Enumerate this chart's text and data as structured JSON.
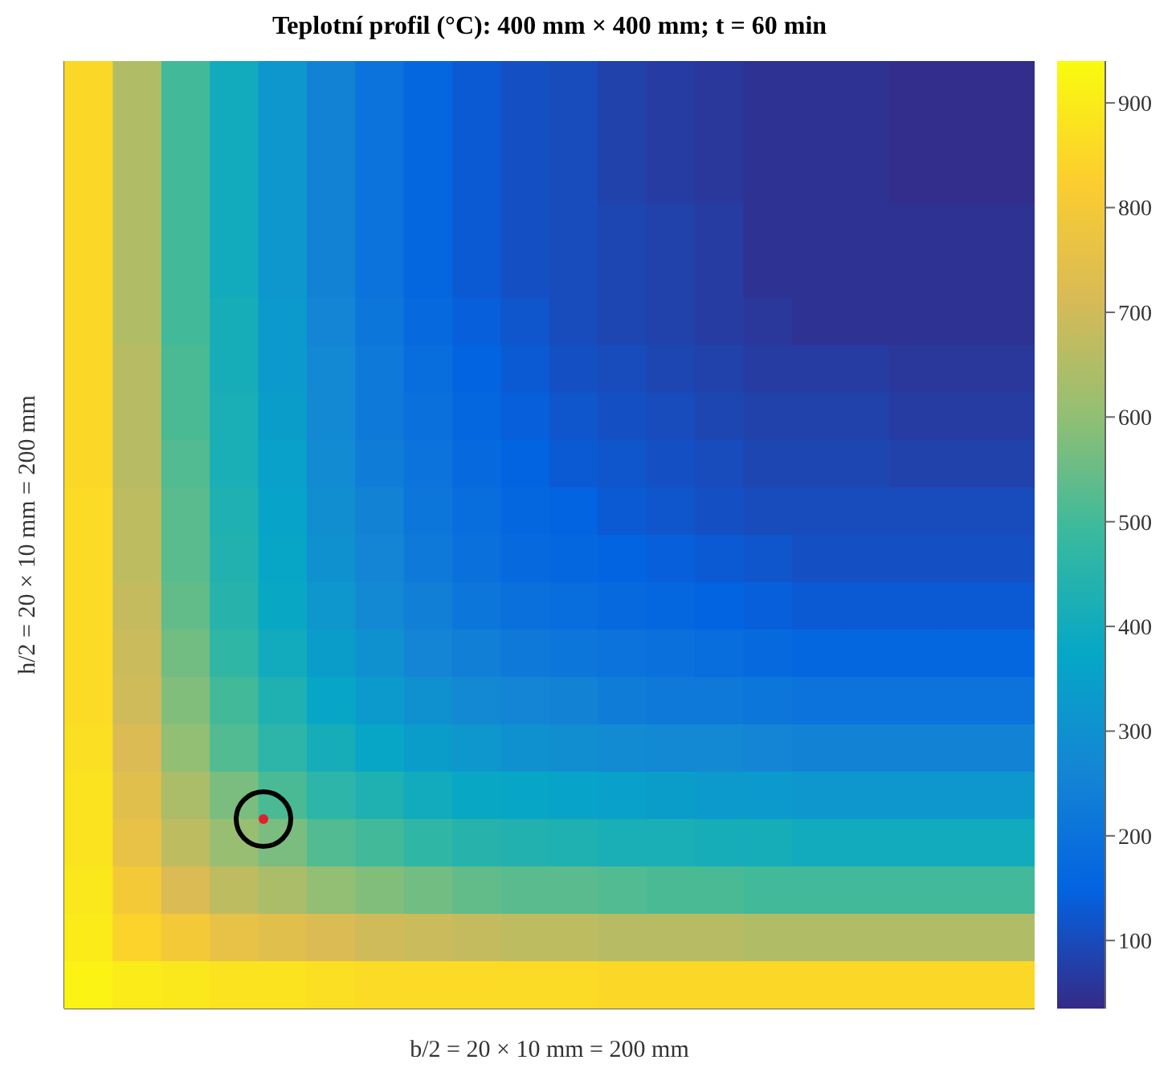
{
  "chart_data": {
    "type": "heatmap",
    "title": "Teplotní profil (°C): 400 mm × 400 mm; t = 60 min",
    "xlabel": "b/2 = 20 × 10 mm = 200 mm",
    "ylabel": "h/2 = 20 × 10 mm = 200 mm",
    "categories": [
      null,
      null,
      null,
      null,
      null,
      null,
      null,
      null,
      null,
      null,
      null,
      null,
      null,
      null,
      null,
      null,
      null,
      null,
      null,
      null
    ],
    "y_categories": [
      null,
      null,
      null,
      null,
      null,
      null,
      null,
      null,
      null,
      null,
      null,
      null,
      null,
      null,
      null,
      null,
      null,
      null,
      null,
      null
    ],
    "cells": [
      [
        850,
        650,
        500,
        400,
        320,
        250,
        200,
        160,
        130,
        110,
        100,
        80,
        70,
        60,
        50,
        50,
        50,
        40,
        40,
        40
      ],
      [
        850,
        650,
        500,
        400,
        320,
        250,
        200,
        160,
        130,
        110,
        100,
        80,
        70,
        60,
        50,
        50,
        50,
        40,
        40,
        40
      ],
      [
        850,
        650,
        500,
        400,
        320,
        250,
        200,
        160,
        130,
        110,
        100,
        80,
        70,
        60,
        50,
        50,
        50,
        40,
        40,
        40
      ],
      [
        850,
        650,
        500,
        400,
        320,
        250,
        200,
        160,
        130,
        110,
        100,
        90,
        80,
        70,
        50,
        50,
        50,
        50,
        50,
        50
      ],
      [
        850,
        650,
        500,
        400,
        320,
        250,
        200,
        160,
        130,
        110,
        100,
        90,
        80,
        70,
        50,
        50,
        50,
        50,
        50,
        50
      ],
      [
        850,
        650,
        500,
        410,
        330,
        260,
        210,
        170,
        140,
        120,
        100,
        90,
        80,
        70,
        60,
        50,
        50,
        50,
        50,
        50
      ],
      [
        850,
        660,
        510,
        410,
        330,
        270,
        220,
        180,
        150,
        130,
        110,
        100,
        90,
        80,
        70,
        70,
        70,
        60,
        60,
        60
      ],
      [
        850,
        660,
        510,
        420,
        340,
        270,
        220,
        190,
        160,
        140,
        120,
        110,
        100,
        90,
        80,
        80,
        80,
        70,
        70,
        70
      ],
      [
        850,
        660,
        520,
        420,
        350,
        280,
        230,
        200,
        170,
        150,
        130,
        120,
        110,
        100,
        90,
        90,
        90,
        80,
        80,
        80
      ],
      [
        860,
        670,
        530,
        430,
        360,
        290,
        250,
        210,
        180,
        160,
        150,
        130,
        120,
        110,
        100,
        100,
        100,
        100,
        100,
        100
      ],
      [
        860,
        670,
        530,
        440,
        370,
        300,
        260,
        220,
        190,
        170,
        160,
        150,
        140,
        130,
        120,
        110,
        110,
        110,
        110,
        110
      ],
      [
        860,
        680,
        540,
        450,
        380,
        320,
        270,
        240,
        210,
        190,
        180,
        170,
        160,
        150,
        140,
        130,
        130,
        130,
        130,
        130
      ],
      [
        860,
        690,
        560,
        470,
        400,
        340,
        300,
        260,
        240,
        220,
        210,
        200,
        190,
        180,
        170,
        160,
        160,
        160,
        160,
        160
      ],
      [
        860,
        700,
        580,
        500,
        430,
        370,
        330,
        300,
        270,
        260,
        250,
        230,
        220,
        220,
        210,
        200,
        200,
        200,
        200,
        200
      ],
      [
        870,
        720,
        600,
        520,
        460,
        410,
        370,
        340,
        320,
        300,
        290,
        280,
        270,
        270,
        260,
        250,
        250,
        250,
        250,
        250
      ],
      [
        880,
        740,
        640,
        570,
        510,
        460,
        430,
        400,
        380,
        370,
        360,
        350,
        340,
        330,
        330,
        320,
        320,
        320,
        320,
        320
      ],
      [
        880,
        760,
        670,
        610,
        570,
        520,
        500,
        470,
        450,
        440,
        430,
        420,
        420,
        410,
        410,
        400,
        400,
        400,
        400,
        400
      ],
      [
        890,
        800,
        720,
        670,
        640,
        600,
        580,
        560,
        540,
        530,
        530,
        520,
        510,
        510,
        500,
        500,
        500,
        500,
        500,
        500
      ],
      [
        900,
        840,
        800,
        760,
        740,
        720,
        700,
        690,
        680,
        670,
        670,
        660,
        660,
        660,
        650,
        650,
        650,
        650,
        650,
        650
      ],
      [
        920,
        900,
        890,
        880,
        880,
        870,
        860,
        860,
        860,
        860,
        860,
        850,
        850,
        850,
        850,
        850,
        850,
        850,
        850,
        850
      ]
    ],
    "clim": [
      35,
      940
    ],
    "cticks": [
      100,
      200,
      300,
      400,
      500,
      600,
      700,
      800,
      900
    ]
  }
}
